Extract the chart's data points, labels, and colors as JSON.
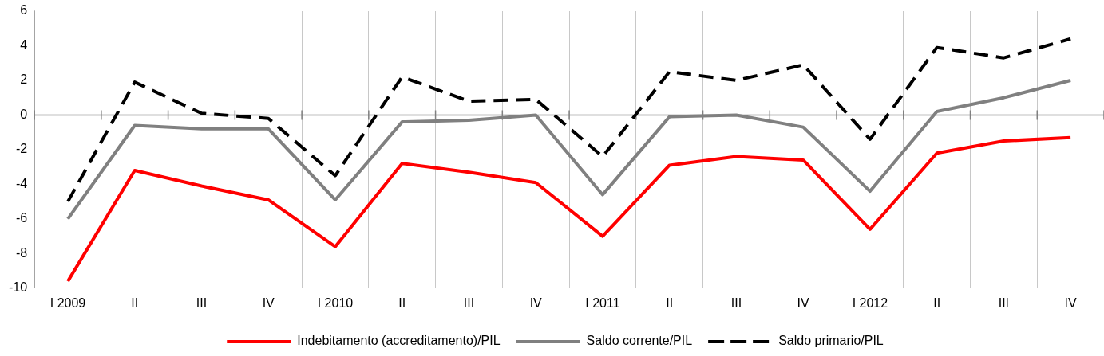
{
  "chart_data": {
    "type": "line",
    "categories": [
      "I 2009",
      "II",
      "III",
      "IV",
      "I 2010",
      "II",
      "III",
      "IV",
      "I 2011",
      "II",
      "III",
      "IV",
      "I 2012",
      "II",
      "III",
      "IV"
    ],
    "series": [
      {
        "name": "Indebitamento (accreditamento)/PIL",
        "color": "#ff0000",
        "line_style": "solid",
        "values": [
          -9.6,
          -3.2,
          -4.1,
          -4.9,
          -7.6,
          -2.8,
          -3.3,
          -3.9,
          -7.0,
          -2.9,
          -2.4,
          -2.6,
          -6.6,
          -2.2,
          -1.5,
          -1.3
        ]
      },
      {
        "name": "Saldo corrente/PIL",
        "color": "#808080",
        "line_style": "solid",
        "values": [
          -6.0,
          -0.6,
          -0.8,
          -0.8,
          -4.9,
          -0.4,
          -0.3,
          0.0,
          -4.6,
          -0.1,
          0.0,
          -0.7,
          -4.4,
          0.2,
          1.0,
          2.0
        ]
      },
      {
        "name": "Saldo primario/PIL",
        "color": "#000000",
        "line_style": "dashed",
        "values": [
          -5.0,
          1.9,
          0.1,
          -0.2,
          -3.5,
          2.2,
          0.8,
          0.9,
          -2.4,
          2.5,
          2.0,
          2.9,
          -1.4,
          3.9,
          3.3,
          4.4
        ]
      }
    ],
    "ylim": [
      -10,
      6
    ],
    "yticks": [
      -10,
      -8,
      -6,
      -4,
      -2,
      0,
      2,
      4,
      6
    ],
    "grid": "x",
    "legend": "bottom",
    "marker": "none",
    "ref_lines": [
      {
        "axis": "y",
        "value": 0,
        "color": "#808080"
      }
    ]
  }
}
